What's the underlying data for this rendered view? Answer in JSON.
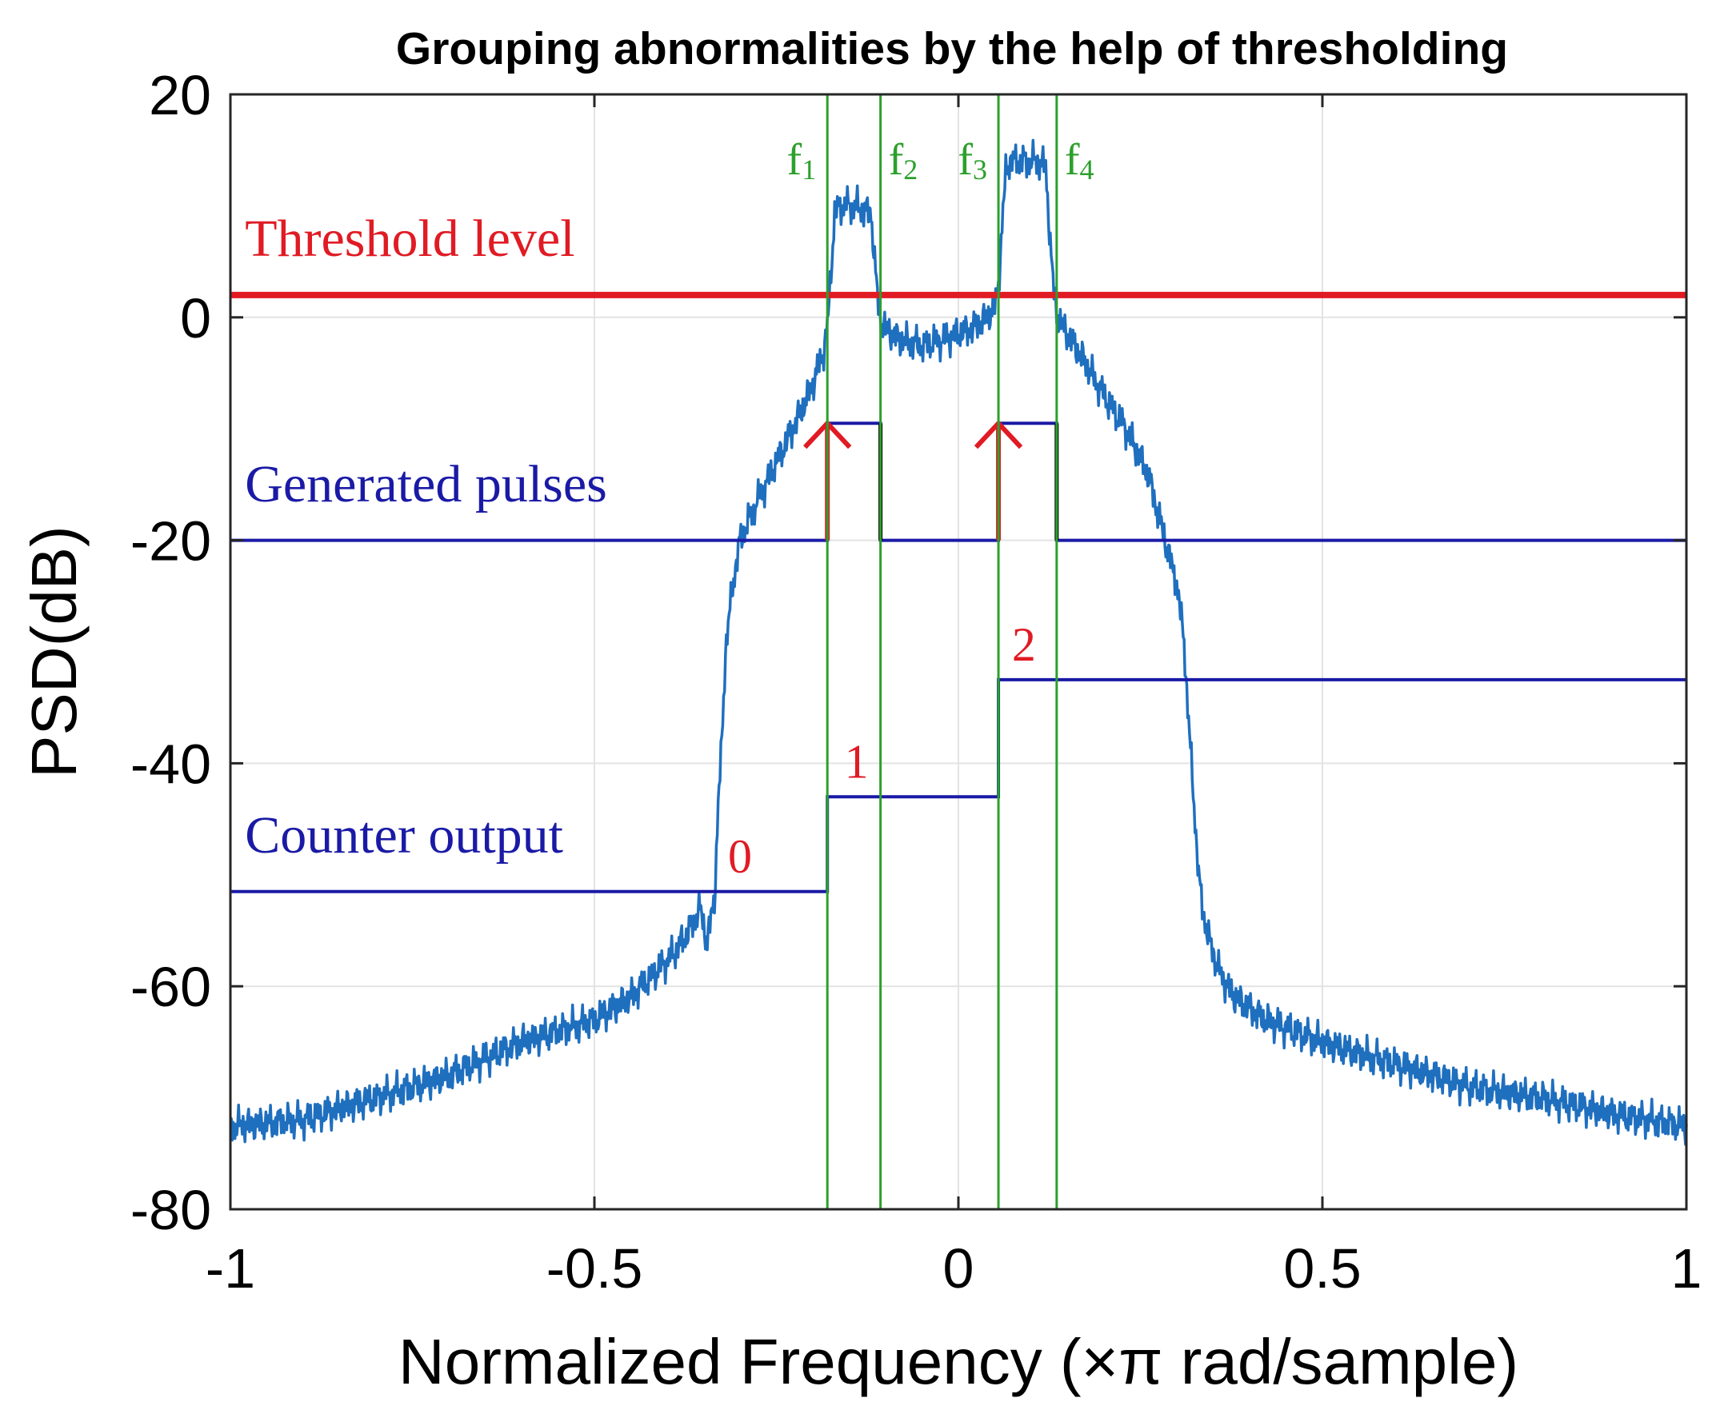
{
  "chart_data": {
    "type": "line",
    "title": "Grouping abnormalities by the help of thresholding",
    "xlabel": "Normalized Frequency (×π rad/sample)",
    "ylabel": "PSD(dB)",
    "xlim": [
      -1,
      1
    ],
    "ylim": [
      -80,
      20
    ],
    "grid": true,
    "x_ticks": [
      -1,
      -0.5,
      0,
      0.5,
      1
    ],
    "x_tick_labels": [
      "-1",
      "-0.5",
      "0",
      "0.5",
      "1"
    ],
    "y_ticks": [
      -80,
      -60,
      -40,
      -20,
      0,
      20
    ],
    "y_tick_labels": [
      "-80",
      "-60",
      "-40",
      "-20",
      "0",
      "20"
    ],
    "psd_envelope": {
      "name": "PSD",
      "color": "#1f6fbf",
      "x": [
        -1.0,
        -0.9,
        -0.8,
        -0.7,
        -0.6,
        -0.5,
        -0.45,
        -0.42,
        -0.39,
        -0.37,
        -0.355,
        -0.345,
        -0.335,
        -0.33,
        -0.325,
        -0.32,
        -0.31,
        -0.3,
        -0.28,
        -0.25,
        -0.22,
        -0.2,
        -0.185,
        -0.18,
        -0.175,
        -0.17,
        -0.16,
        -0.14,
        -0.13,
        -0.12,
        -0.115,
        -0.11,
        -0.105,
        -0.1,
        -0.08,
        -0.05,
        -0.02,
        0.0,
        0.02,
        0.04,
        0.05,
        0.055,
        0.06,
        0.065,
        0.07,
        0.09,
        0.11,
        0.12,
        0.125,
        0.13,
        0.135,
        0.14,
        0.16,
        0.2,
        0.23,
        0.26,
        0.28,
        0.3,
        0.31,
        0.315,
        0.32,
        0.325,
        0.33,
        0.335,
        0.345,
        0.36,
        0.38,
        0.42,
        0.5,
        0.6,
        0.7,
        0.8,
        0.9,
        1.0
      ],
      "y": [
        -72.5,
        -72.0,
        -70.0,
        -68.0,
        -65.0,
        -63.0,
        -61.0,
        -59.0,
        -57.0,
        -55.0,
        -53.0,
        -56.0,
        -52.0,
        -44.0,
        -38.0,
        -30.0,
        -24.0,
        -20.0,
        -17.0,
        -13.0,
        -9.0,
        -6.0,
        -3.0,
        -1.0,
        4.0,
        9.5,
        10.0,
        10.0,
        9.5,
        9.5,
        5.0,
        1.0,
        -0.5,
        -1.0,
        -2.0,
        -2.5,
        -2.0,
        -1.5,
        -1.0,
        0.0,
        1.0,
        3.0,
        8.0,
        13.0,
        14.0,
        14.0,
        14.0,
        13.5,
        8.0,
        3.0,
        0.5,
        -0.5,
        -2.5,
        -7.0,
        -10.0,
        -14.0,
        -19.0,
        -24.0,
        -29.0,
        -35.0,
        -40.0,
        -45.0,
        -50.0,
        -53.0,
        -56.0,
        -59.0,
        -61.0,
        -63.0,
        -65.0,
        -67.0,
        -69.0,
        -70.0,
        -71.5,
        -72.5
      ]
    },
    "threshold_level_db": 2,
    "threshold_color": "#e01b24",
    "frequency_markers": [
      {
        "name": "f1",
        "label": "f",
        "subscript": "1",
        "x": -0.18
      },
      {
        "name": "f2",
        "label": "f",
        "subscript": "2",
        "x": -0.107
      },
      {
        "name": "f3",
        "label": "f",
        "subscript": "3",
        "x": 0.055
      },
      {
        "name": "f4",
        "label": "f",
        "subscript": "4",
        "x": 0.135
      }
    ],
    "marker_color": "#2ca02c",
    "generated_pulses": {
      "label": "Generated pulses",
      "color": "#1a1aa6",
      "x": [
        -1.0,
        -0.18,
        -0.18,
        -0.107,
        -0.107,
        0.055,
        0.055,
        0.135,
        0.135,
        1.0
      ],
      "y": [
        -20.0,
        -20.0,
        -9.5,
        -9.5,
        -20.0,
        -20.0,
        -9.5,
        -9.5,
        -20.0,
        -20.0
      ],
      "rising_edges": [
        -0.18,
        0.055
      ],
      "falling_edges": [
        -0.107,
        0.135
      ],
      "rising_color": "#e01b24",
      "falling_color": "#000000"
    },
    "counter_output": {
      "label": "Counter output",
      "color": "#1a1aa6",
      "x": [
        -1.0,
        -0.18,
        -0.18,
        0.055,
        0.055,
        1.0
      ],
      "y": [
        -51.5,
        -51.5,
        -43.0,
        -43.0,
        -32.5,
        -32.5
      ],
      "value_labels": [
        {
          "text": "0",
          "x": -0.3,
          "y": -48.5
        },
        {
          "text": "1",
          "x": -0.14,
          "y": -40.0
        },
        {
          "text": "2",
          "x": 0.09,
          "y": -29.5
        }
      ]
    },
    "annotations": [
      {
        "text": "Threshold level",
        "x": -0.98,
        "y": 5.5,
        "color": "#e01b24"
      },
      {
        "text": "Generated pulses",
        "x": -0.98,
        "y": -16.5,
        "color": "#1a1aa6"
      },
      {
        "text": "Counter output",
        "x": -0.98,
        "y": -48.0,
        "color": "#1a1aa6"
      }
    ]
  }
}
